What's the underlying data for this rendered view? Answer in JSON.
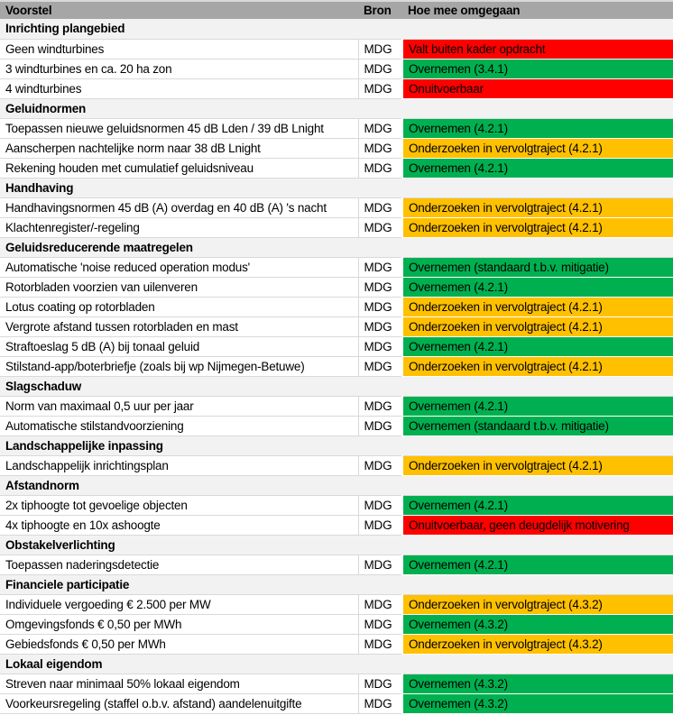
{
  "theme": {
    "header_bg": "#a6a6a6",
    "section_bg": "#f2f2f2",
    "row_bg": "#ffffff",
    "gridline": "#d9d9d9",
    "text": "#000000"
  },
  "status_colors": {
    "red": "#ff0000",
    "green": "#00b050",
    "amber": "#ffc000"
  },
  "table": {
    "columns": [
      "Voorstel",
      "Bron",
      "Hoe mee omgegaan"
    ],
    "rows": [
      {
        "type": "section",
        "title": "Inrichting plangebied"
      },
      {
        "type": "item",
        "voorstel": "Geen windturbines",
        "bron": "MDG",
        "status": "Valt buiten kader opdracht",
        "status_color": "red"
      },
      {
        "type": "item",
        "voorstel": "3 windturbines en ca. 20 ha zon",
        "bron": "MDG",
        "status": "Overnemen (3.4.1)",
        "status_color": "green"
      },
      {
        "type": "item",
        "voorstel": "4 windturbines",
        "bron": "MDG",
        "status": "Onuitvoerbaar",
        "status_color": "red"
      },
      {
        "type": "section",
        "title": "Geluidnormen"
      },
      {
        "type": "item",
        "voorstel": "Toepassen nieuwe geluidsnormen 45 dB Lden / 39 dB Lnight",
        "bron": "MDG",
        "status": "Overnemen (4.2.1)",
        "status_color": "green"
      },
      {
        "type": "item",
        "voorstel": "Aanscherpen nachtelijke norm naar 38 dB Lnight",
        "bron": "MDG",
        "status": "Onderzoeken in vervolgtraject (4.2.1)",
        "status_color": "amber"
      },
      {
        "type": "item",
        "voorstel": "Rekening houden met cumulatief geluidsniveau",
        "bron": "MDG",
        "status": "Overnemen (4.2.1)",
        "status_color": "green"
      },
      {
        "type": "section",
        "title": "Handhaving"
      },
      {
        "type": "item",
        "voorstel": "Handhavingsnormen 45 dB (A) overdag en 40 dB (A) 's nacht",
        "bron": "MDG",
        "status": "Onderzoeken in vervolgtraject (4.2.1)",
        "status_color": "amber"
      },
      {
        "type": "item",
        "voorstel": "Klachtenregister/-regeling",
        "bron": "MDG",
        "status": "Onderzoeken in vervolgtraject (4.2.1)",
        "status_color": "amber"
      },
      {
        "type": "section",
        "title": "Geluidsreducerende maatregelen"
      },
      {
        "type": "item",
        "voorstel": "Automatische 'noise reduced operation modus'",
        "bron": "MDG",
        "status": "Overnemen (standaard t.b.v. mitigatie)",
        "status_color": "green"
      },
      {
        "type": "item",
        "voorstel": "Rotorbladen voorzien van uilenveren",
        "bron": "MDG",
        "status": "Overnemen (4.2.1)",
        "status_color": "green"
      },
      {
        "type": "item",
        "voorstel": "Lotus coating op rotorbladen",
        "bron": "MDG",
        "status": "Onderzoeken in vervolgtraject (4.2.1)",
        "status_color": "amber"
      },
      {
        "type": "item",
        "voorstel": "Vergrote afstand tussen rotorbladen en mast",
        "bron": "MDG",
        "status": "Onderzoeken in vervolgtraject (4.2.1)",
        "status_color": "amber"
      },
      {
        "type": "item",
        "voorstel": "Straftoeslag 5 dB (A) bij tonaal geluid",
        "bron": "MDG",
        "status": "Overnemen (4.2.1)",
        "status_color": "green"
      },
      {
        "type": "item",
        "voorstel": "Stilstand-app/boterbriefje (zoals bij wp Nijmegen-Betuwe)",
        "bron": "MDG",
        "status": "Onderzoeken in vervolgtraject (4.2.1)",
        "status_color": "amber"
      },
      {
        "type": "section",
        "title": "Slagschaduw"
      },
      {
        "type": "item",
        "voorstel": "Norm van maximaal 0,5 uur per jaar",
        "bron": "MDG",
        "status": "Overnemen (4.2.1)",
        "status_color": "green"
      },
      {
        "type": "item",
        "voorstel": "Automatische stilstandvoorziening",
        "bron": "MDG",
        "status": "Overnemen (standaard t.b.v. mitigatie)",
        "status_color": "green"
      },
      {
        "type": "section",
        "title": "Landschappelijke inpassing"
      },
      {
        "type": "item",
        "voorstel": "Landschappelijk inrichtingsplan",
        "bron": "MDG",
        "status": "Onderzoeken in vervolgtraject (4.2.1)",
        "status_color": "amber"
      },
      {
        "type": "section",
        "title": "Afstandnorm"
      },
      {
        "type": "item",
        "voorstel": "2x tiphoogte tot gevoelige objecten",
        "bron": "MDG",
        "status": "Overnemen (4.2.1)",
        "status_color": "green"
      },
      {
        "type": "item",
        "voorstel": "4x tiphoogte en 10x ashoogte",
        "bron": "MDG",
        "status": "Onuitvoerbaar, geen deugdelijk motivering",
        "status_color": "red"
      },
      {
        "type": "section",
        "title": "Obstakelverlichting"
      },
      {
        "type": "item",
        "voorstel": "Toepassen naderingsdetectie",
        "bron": "MDG",
        "status": "Overnemen (4.2.1)",
        "status_color": "green"
      },
      {
        "type": "section",
        "title": "Financiele participatie"
      },
      {
        "type": "item",
        "voorstel": "Individuele vergoeding € 2.500 per MW",
        "bron": "MDG",
        "status": "Onderzoeken in vervolgtraject (4.3.2)",
        "status_color": "amber"
      },
      {
        "type": "item",
        "voorstel": "Omgevingsfonds € 0,50 per MWh",
        "bron": "MDG",
        "status": "Overnemen (4.3.2)",
        "status_color": "green"
      },
      {
        "type": "item",
        "voorstel": "Gebiedsfonds € 0,50 per MWh",
        "bron": "MDG",
        "status": "Onderzoeken in vervolgtraject (4.3.2)",
        "status_color": "amber"
      },
      {
        "type": "section",
        "title": "Lokaal eigendom"
      },
      {
        "type": "item",
        "voorstel": "Streven naar minimaal 50% lokaal eigendom",
        "bron": "MDG",
        "status": "Overnemen (4.3.2)",
        "status_color": "green"
      },
      {
        "type": "item",
        "voorstel": "Voorkeursregeling (staffel o.b.v. afstand) aandelenuitgifte",
        "bron": "MDG",
        "status": "Overnemen (4.3.2)",
        "status_color": "green"
      }
    ]
  }
}
